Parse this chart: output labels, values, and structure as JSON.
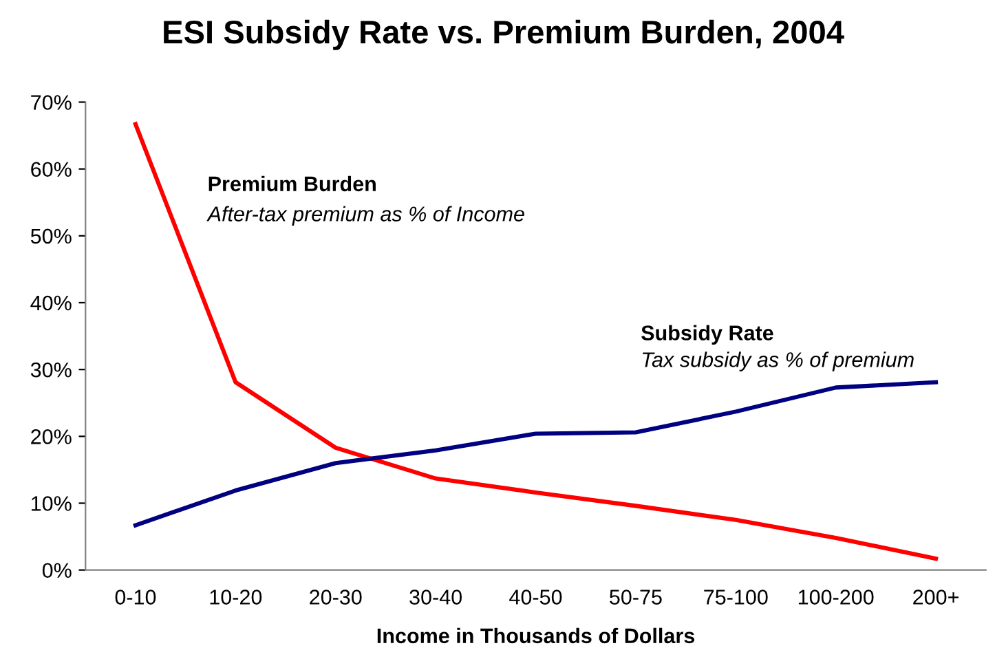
{
  "chart_data": {
    "type": "line",
    "title": "ESI Subsidy Rate vs. Premium Burden, 2004",
    "xlabel": "Income in Thousands of Dollars",
    "categories": [
      "0-10",
      "10-20",
      "20-30",
      "30-40",
      "40-50",
      "50-75",
      "75-100",
      "100-200",
      "200+"
    ],
    "series": [
      {
        "name": "Premium Burden",
        "color": "#ff0000",
        "values": [
          66.7,
          28.1,
          18.3,
          13.7,
          11.6,
          9.6,
          7.5,
          4.8,
          1.7
        ]
      },
      {
        "name": "Subsidy Rate",
        "color": "#000080",
        "values": [
          6.7,
          11.9,
          16.0,
          17.9,
          20.4,
          20.6,
          23.7,
          27.3,
          28.1
        ]
      }
    ],
    "annotations": [
      "After-tax premium as % of Income",
      "Tax subsidy as % of premium"
    ],
    "ylim": [
      0,
      70
    ],
    "yticks": [
      {
        "value": 0,
        "label": "0%"
      },
      {
        "value": 10,
        "label": "10%"
      },
      {
        "value": 20,
        "label": "20%"
      },
      {
        "value": 30,
        "label": "30%"
      },
      {
        "value": 40,
        "label": "40%"
      },
      {
        "value": 50,
        "label": "50%"
      },
      {
        "value": 60,
        "label": "60%"
      },
      {
        "value": 70,
        "label": "70%"
      }
    ],
    "grid": false,
    "legend": false,
    "marker": "none",
    "line_style": "solid"
  }
}
